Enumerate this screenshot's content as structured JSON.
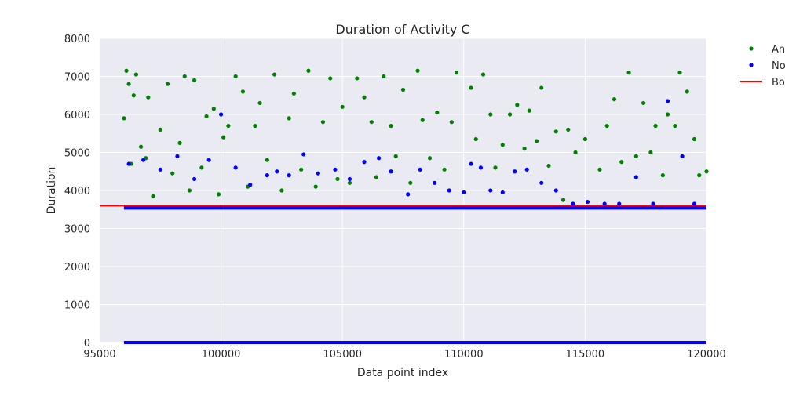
{
  "chart_data": {
    "type": "scatter",
    "title": "Duration of Activity C",
    "xlabel": "Data point index",
    "ylabel": "Duration",
    "xlim": [
      95000,
      120000
    ],
    "ylim": [
      0,
      8000
    ],
    "x_ticks": [
      95000,
      100000,
      105000,
      110000,
      115000,
      120000
    ],
    "y_ticks": [
      0,
      1000,
      2000,
      3000,
      4000,
      5000,
      6000,
      7000,
      8000
    ],
    "grid": true,
    "legend_position": "outside-top-right",
    "legend": [
      {
        "label": "An",
        "kind": "point",
        "color": "#008000"
      },
      {
        "label": "No",
        "kind": "point",
        "color": "#0000ff"
      },
      {
        "label": "Bo",
        "kind": "line",
        "color": "#ff0000"
      }
    ],
    "threshold": {
      "value": 3600,
      "color": "#ff0000"
    },
    "series": [
      {
        "color": "#008000",
        "x": [
          96000,
          96100,
          96200,
          96300,
          96400,
          96500,
          96700,
          96900,
          97000,
          97200,
          97500,
          97800,
          98000,
          98300,
          98500,
          98700,
          98900,
          99200,
          99400,
          99700,
          99900,
          100100,
          100300,
          100600,
          100900,
          101100,
          101400,
          101600,
          101900,
          102200,
          102500,
          102800,
          103000,
          103300,
          103600,
          103900,
          104200,
          104500,
          104800,
          105000,
          105300,
          105600,
          105900,
          106200,
          106400,
          106700,
          107000,
          107200,
          107500,
          107800,
          108100,
          108300,
          108600,
          108900,
          109200,
          109500,
          109700,
          110000,
          110300,
          110500,
          110800,
          111100,
          111300,
          111600,
          111900,
          112200,
          112500,
          112700,
          113000,
          113200,
          113500,
          113800,
          114100,
          114300,
          114600,
          115000,
          115600,
          115900,
          116200,
          116500,
          116800,
          117100,
          117400,
          117700,
          117900,
          118200,
          118400,
          118700,
          118900,
          119200,
          119500,
          119700,
          120000
        ],
        "values": [
          5900,
          7150,
          6800,
          4700,
          6500,
          7050,
          5150,
          4850,
          6450,
          3850,
          5600,
          6800,
          4450,
          5250,
          7000,
          4000,
          6900,
          4600,
          5950,
          6150,
          3900,
          5400,
          5700,
          7000,
          6600,
          4100,
          5700,
          6300,
          4800,
          7050,
          4000,
          5900,
          6550,
          4550,
          7150,
          4100,
          5800,
          6950,
          4300,
          6200,
          4200,
          6950,
          6450,
          5800,
          4350,
          7000,
          5700,
          4900,
          6650,
          4200,
          7150,
          5850,
          4850,
          6050,
          4550,
          5800,
          7100,
          3950,
          6700,
          5350,
          7050,
          6000,
          4600,
          5200,
          6000,
          6250,
          5100,
          6100,
          5300,
          6700,
          4650,
          5550,
          3750,
          5600,
          5000,
          5350,
          4550,
          5700,
          6400,
          4750,
          7100,
          4900,
          6300,
          5000,
          5700,
          4400,
          6000,
          5700,
          7100,
          6600,
          5350,
          4400,
          4500
        ]
      },
      {
        "color": "#0000ff",
        "x": [
          96200,
          96800,
          97500,
          98200,
          98900,
          99500,
          100000,
          100600,
          101200,
          101900,
          102300,
          102800,
          103400,
          104000,
          104700,
          105300,
          105900,
          106500,
          107000,
          107700,
          108200,
          108800,
          109400,
          110000,
          110300,
          110700,
          111100,
          111600,
          112100,
          112600,
          113200,
          113800,
          114500,
          115100,
          115800,
          116400,
          117100,
          117800,
          118400,
          119000,
          119500
        ],
        "values": [
          4700,
          4800,
          4550,
          4900,
          4300,
          4800,
          6000,
          4600,
          4150,
          4400,
          4500,
          4400,
          4950,
          4450,
          4550,
          4300,
          4750,
          4850,
          4500,
          3900,
          4550,
          4200,
          4000,
          3950,
          4700,
          4600,
          4000,
          3950,
          4500,
          4550,
          4200,
          4000,
          3650,
          3700,
          3650,
          3650,
          4350,
          3650,
          6350,
          4900,
          3650
        ]
      }
    ]
  }
}
